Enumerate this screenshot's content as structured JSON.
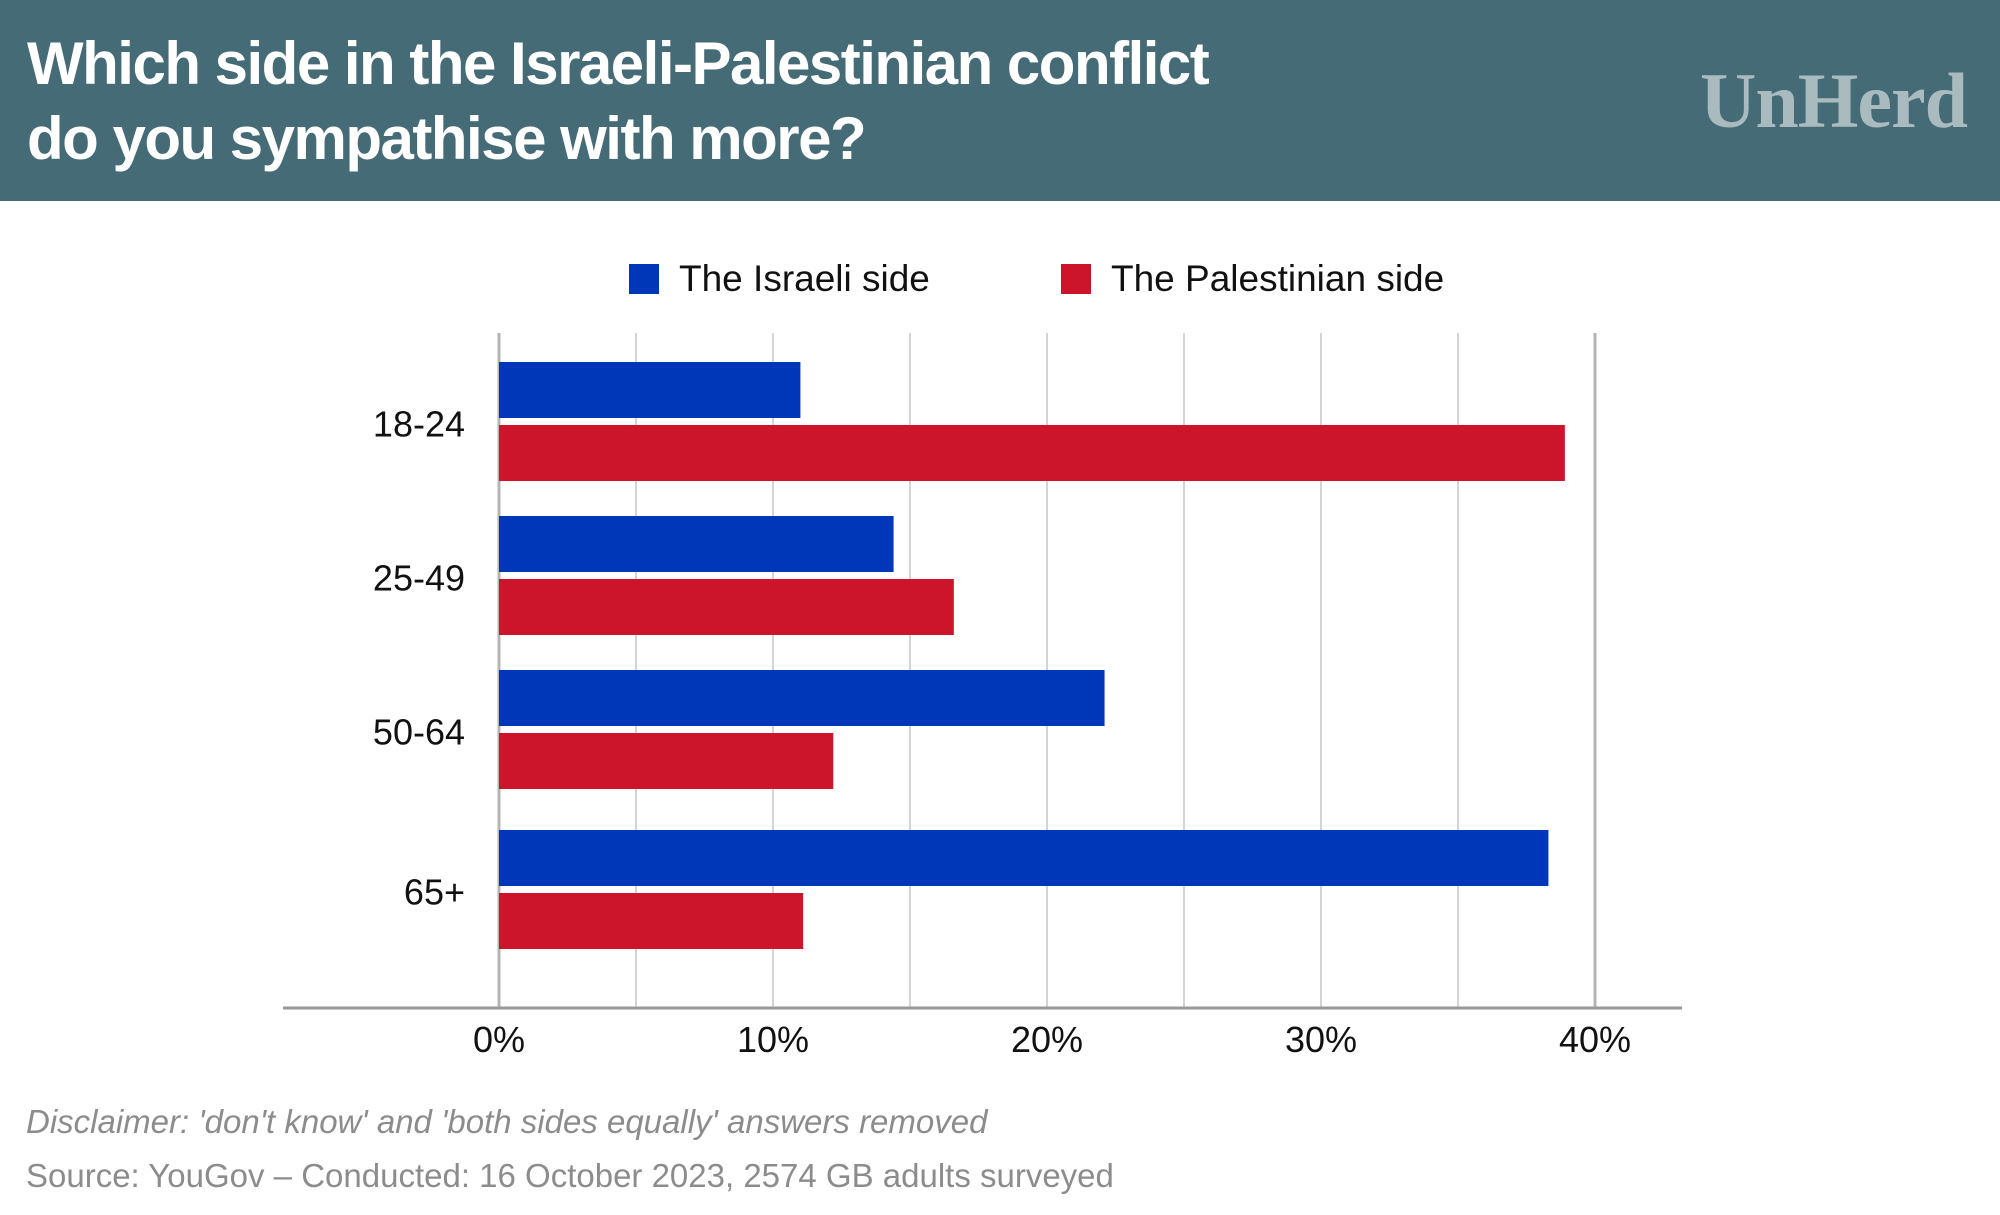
{
  "header": {
    "title_line1": "Which side in the Israeli-Palestinian conflict",
    "title_line2": "do you sympathise with more?",
    "brand": "UnHerd"
  },
  "footer": {
    "disclaimer": "Disclaimer: 'don't know' and 'both sides equally' answers removed",
    "source": "Source: YouGov – Conducted: 16 October 2023, 2574 GB adults surveyed"
  },
  "colors": {
    "header_bg": "#456b76",
    "israeli": "#0037b8",
    "palestinian": "#cc142b",
    "grid": "#d4d4d4"
  },
  "chart_data": {
    "type": "bar",
    "orientation": "horizontal",
    "categories": [
      "18-24",
      "25-49",
      "50-64",
      "65+"
    ],
    "series": [
      {
        "name": "The Israeli side",
        "color": "#0037b8",
        "values": [
          11,
          14.4,
          22.1,
          38.3
        ]
      },
      {
        "name": "The Palestinian side",
        "color": "#cc142b",
        "values": [
          38.9,
          16.6,
          12.2,
          11.1
        ]
      }
    ],
    "x_ticks": [
      "0%",
      "10%",
      "20%",
      "30%",
      "40%"
    ],
    "xlim": [
      0,
      40
    ],
    "grid": true,
    "legend_position": "top"
  }
}
